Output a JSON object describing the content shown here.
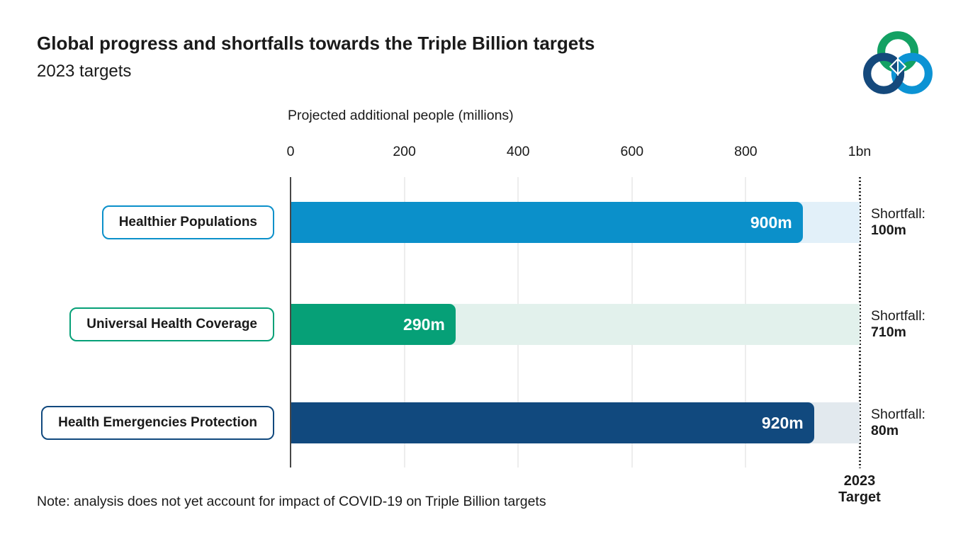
{
  "header": {
    "title": "Global progress and shortfalls towards the Triple Billion targets",
    "subtitle": "2023 targets",
    "logo_name": "WHO Triple Billion logo",
    "logo_colors": {
      "green": "#13a163",
      "dark_blue": "#15497c",
      "light_blue": "#0c93d4"
    }
  },
  "chart_data": {
    "type": "bar",
    "orientation": "horizontal",
    "title": "Projected additional people (millions)",
    "x_axis": {
      "ticks": [
        {
          "label": "0",
          "value": 0
        },
        {
          "label": "200",
          "value": 200
        },
        {
          "label": "400",
          "value": 400
        },
        {
          "label": "600",
          "value": 600
        },
        {
          "label": "800",
          "value": 800
        },
        {
          "label": "1bn",
          "value": 1000
        }
      ],
      "max": 1000,
      "grid": true
    },
    "target": {
      "value": 1000,
      "label_line1": "2023",
      "label_line2": "Target"
    },
    "shortfall_prefix": "Shortfall:",
    "series": [
      {
        "category": "Healthier Populations",
        "value": 900,
        "value_label": "900m",
        "shortfall": 100,
        "shortfall_value": "100m",
        "bar_color": "#0b90ca",
        "track_color": "#e2f0f9"
      },
      {
        "category": "Universal Health Coverage",
        "value": 290,
        "value_label": "290m",
        "shortfall": 710,
        "shortfall_value": "710m",
        "bar_color": "#06a077",
        "track_color": "#e2f1ec"
      },
      {
        "category": "Health Emergencies Protection",
        "value": 920,
        "value_label": "920m",
        "shortfall": 80,
        "shortfall_value": "80m",
        "bar_color": "#11497e",
        "track_color": "#e2e9ee"
      }
    ]
  },
  "note": "Note: analysis does not yet account for impact of COVID-19 on Triple Billion targets"
}
